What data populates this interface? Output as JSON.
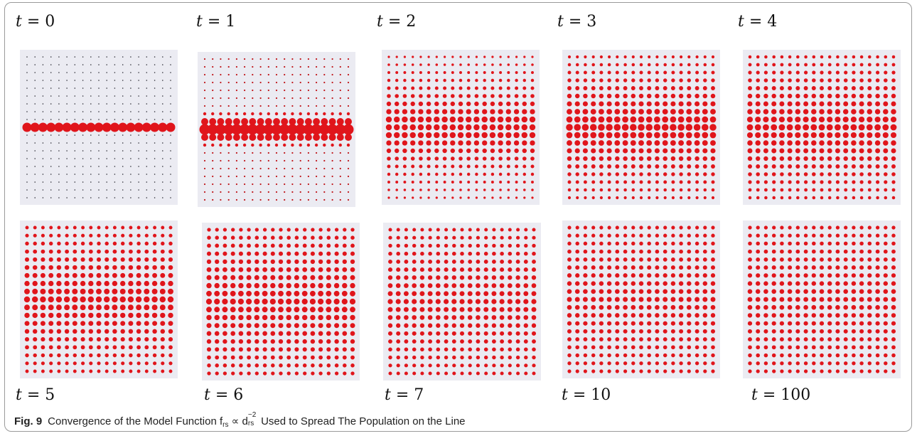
{
  "figure": {
    "panels": [
      {
        "label_var": "t",
        "label_rest": " = 0",
        "state": "t0"
      },
      {
        "label_var": "t",
        "label_rest": " = 1",
        "state": "t1"
      },
      {
        "label_var": "t",
        "label_rest": " = 2",
        "state": "t2"
      },
      {
        "label_var": "t",
        "label_rest": " = 3",
        "state": "t3"
      },
      {
        "label_var": "t",
        "label_rest": " = 4",
        "state": "t4"
      },
      {
        "label_var": "t",
        "label_rest": " = 5",
        "state": "t5"
      },
      {
        "label_var": "t",
        "label_rest": " = 6",
        "state": "t6"
      },
      {
        "label_var": "t",
        "label_rest": " = 7",
        "state": "t7"
      },
      {
        "label_var": "t",
        "label_rest": " = 10",
        "state": "t10"
      },
      {
        "label_var": "t",
        "label_rest": " = 100",
        "state": "t100"
      }
    ],
    "colors": {
      "dot_red": "#e0151b",
      "dot_dark": "#2a2a33",
      "panel_bg": "#ebebf2"
    }
  },
  "caption": {
    "fig_label": "Fig. 9",
    "text_before": "Convergence of the Model Function f",
    "f_sub": "rs",
    "proportional": " ∝ d",
    "d_sup": "−2",
    "d_sub": "rs",
    "text_after": " Used to Spread The Population on the Line"
  }
}
